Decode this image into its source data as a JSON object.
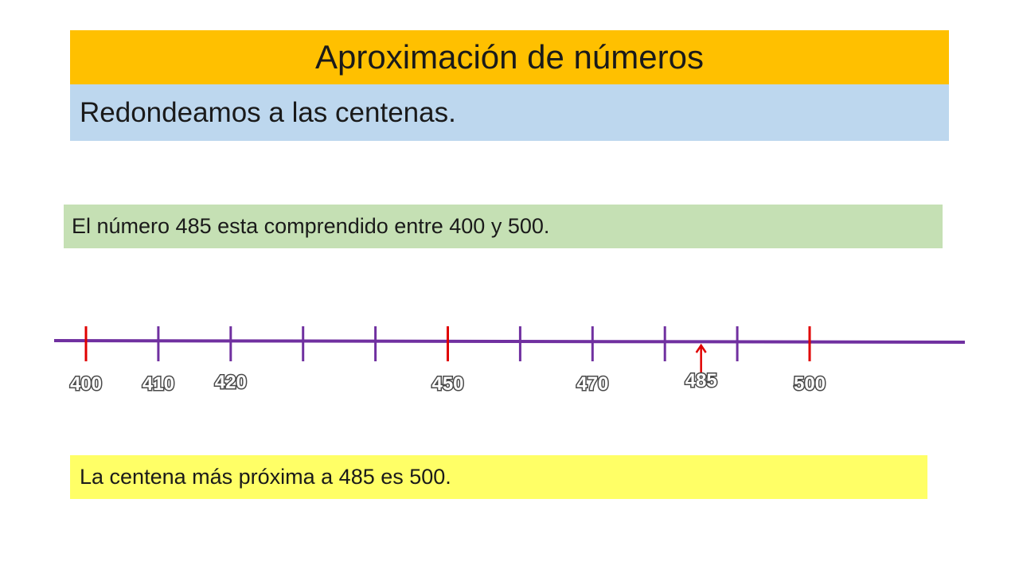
{
  "title": "Aproximación de números",
  "subtitle": "Redondeamos a las centenas.",
  "range_statement": "El número 485 esta comprendido entre 400 y 500.",
  "answer_statement": "La centena más próxima a 485 es 500.",
  "number_line": {
    "ticks": [
      {
        "value": 400,
        "label": "400",
        "highlight": true
      },
      {
        "value": 410,
        "label": "410",
        "highlight": false
      },
      {
        "value": 420,
        "label": "420",
        "highlight": false
      },
      {
        "value": 430,
        "label": "",
        "highlight": false
      },
      {
        "value": 440,
        "label": "",
        "highlight": false
      },
      {
        "value": 450,
        "label": "450",
        "highlight": true
      },
      {
        "value": 460,
        "label": "",
        "highlight": false
      },
      {
        "value": 470,
        "label": "470",
        "highlight": false
      },
      {
        "value": 480,
        "label": "",
        "highlight": false
      },
      {
        "value": 490,
        "label": "",
        "highlight": false
      },
      {
        "value": 500,
        "label": "500",
        "highlight": true
      }
    ],
    "marker": {
      "value": 485,
      "label": "485"
    },
    "colors": {
      "line": "#7030a0",
      "highlight": "#e00000",
      "title_bg": "#ffc000",
      "subtitle_bg": "#bdd7ee",
      "range_bg": "#c5e0b4",
      "answer_bg": "#ffff66"
    }
  }
}
